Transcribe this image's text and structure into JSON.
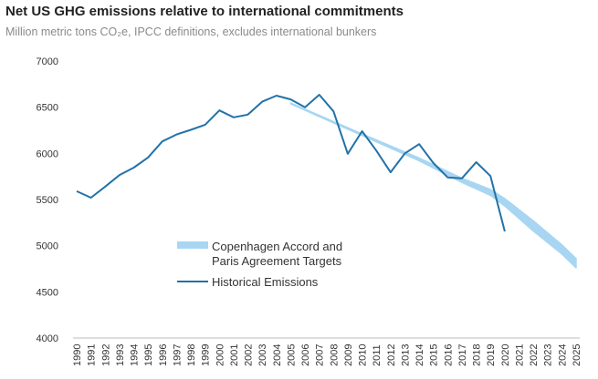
{
  "chart_data": {
    "type": "line",
    "title": "Net US GHG emissions relative to international commitments",
    "subtitle": "Million metric tons CO₂e, IPCC definitions, excludes international bunkers",
    "xlabel": "",
    "ylabel": "",
    "ylim": [
      4000,
      7000
    ],
    "yticks": [
      4000,
      4500,
      5000,
      5500,
      6000,
      6500,
      7000
    ],
    "xlim": [
      1990,
      2025
    ],
    "grid": false,
    "legend_position": "center",
    "series": [
      {
        "name": "Copenhagen Accord and Paris Agreement Targets",
        "style": "band",
        "color": "#a8d6f2",
        "x": [
          2005,
          2008,
          2011,
          2014,
          2017,
          2019,
          2020,
          2022,
          2024,
          2025
        ],
        "lower": [
          6535,
          6330,
          6125,
          5920,
          5685,
          5545,
          5430,
          5160,
          4910,
          4760
        ],
        "upper": [
          6545,
          6345,
          6145,
          5950,
          5730,
          5610,
          5510,
          5270,
          5010,
          4860
        ]
      },
      {
        "name": "Historical Emissions",
        "style": "line",
        "color": "#2272a8",
        "x": [
          1990,
          1991,
          1992,
          1993,
          1994,
          1995,
          1996,
          1997,
          1998,
          1999,
          2000,
          2001,
          2002,
          2003,
          2004,
          2005,
          2006,
          2007,
          2008,
          2009,
          2010,
          2011,
          2012,
          2013,
          2014,
          2015,
          2016,
          2017,
          2018,
          2019,
          2020
        ],
        "values": [
          5590,
          5520,
          5640,
          5765,
          5845,
          5955,
          6130,
          6205,
          6255,
          6310,
          6465,
          6390,
          6420,
          6560,
          6625,
          6585,
          6500,
          6635,
          6455,
          5995,
          6240,
          6030,
          5795,
          6000,
          6100,
          5895,
          5740,
          5730,
          5905,
          5755,
          5155
        ]
      }
    ]
  }
}
